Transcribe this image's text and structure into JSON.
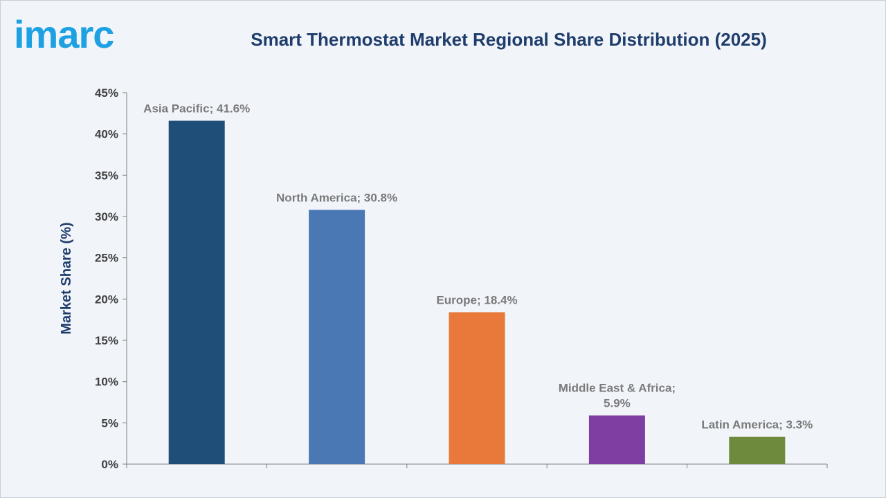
{
  "brand": {
    "logo_text": "imarc"
  },
  "chart_data": {
    "type": "bar",
    "title": "Smart Thermostat Market Regional Share Distribution (2025)",
    "ylabel": "Market Share (%)",
    "xlabel": "",
    "ylim": [
      0,
      45
    ],
    "yticks": [
      0,
      5,
      10,
      15,
      20,
      25,
      30,
      35,
      40,
      45
    ],
    "ytick_labels": [
      "0%",
      "5%",
      "10%",
      "15%",
      "20%",
      "25%",
      "30%",
      "35%",
      "40%",
      "45%"
    ],
    "grid": false,
    "categories": [
      "Asia Pacific",
      "North America",
      "Europe",
      "Middle East & Africa",
      "Latin America"
    ],
    "values": [
      41.6,
      30.8,
      18.4,
      5.9,
      3.3
    ],
    "data_labels": [
      [
        "Asia Pacific; 41.6%"
      ],
      [
        "North America; 30.8%"
      ],
      [
        "Europe; 18.4%"
      ],
      [
        "Middle East & Africa;",
        "5.9%"
      ],
      [
        "Latin America; 3.3%"
      ]
    ],
    "colors": [
      "#1f4e79",
      "#4a78b5",
      "#e8793a",
      "#7e3ea2",
      "#6e8b3d"
    ]
  }
}
